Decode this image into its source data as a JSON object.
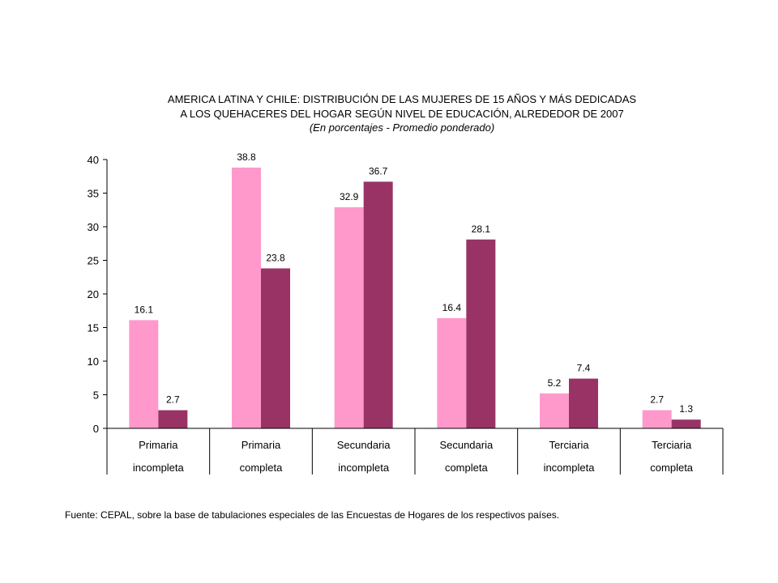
{
  "chart_data": {
    "type": "bar",
    "title": [
      "AMERICA LATINA Y CHILE:  DISTRIBUCIÓN DE LAS MUJERES DE 15 AÑOS Y MÁS DEDICADAS",
      "A LOS QUEHACERES DEL HOGAR SEGÚN NIVEL DE EDUCACIÓN, ALREDEDOR DE 2007"
    ],
    "subtitle": "(En porcentajes - Promedio ponderado)",
    "categories": [
      [
        "Primaria",
        "incompleta"
      ],
      [
        "Primaria",
        "completa"
      ],
      [
        "Secundaria",
        "incompleta"
      ],
      [
        "Secundaria",
        "completa"
      ],
      [
        "Terciaria",
        "incompleta"
      ],
      [
        "Terciaria",
        "completa"
      ]
    ],
    "series": [
      {
        "values": [
          16.1,
          38.8,
          32.9,
          16.4,
          5.2,
          2.7
        ],
        "color": "#ff99cc"
      },
      {
        "values": [
          2.7,
          23.8,
          36.7,
          28.1,
          7.4,
          1.3
        ],
        "color": "#993366"
      }
    ],
    "yticks": [
      0,
      5,
      10,
      15,
      20,
      25,
      30,
      35,
      40
    ],
    "ylim": [
      0,
      40
    ],
    "grid": false,
    "legend": "none",
    "source": "Fuente: CEPAL, sobre la base de tabulaciones especiales de las Encuestas de Hogares de los respectivos países."
  }
}
